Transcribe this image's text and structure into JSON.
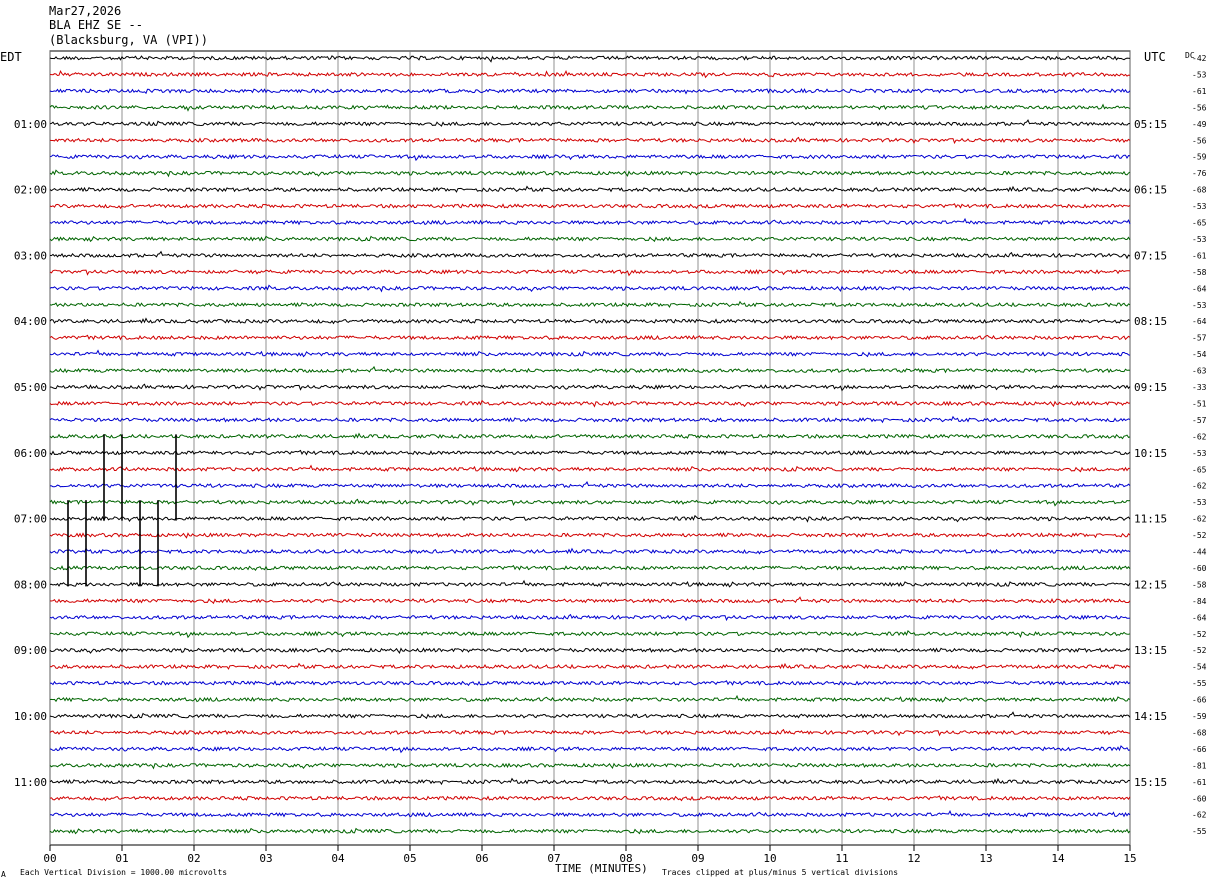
{
  "header": {
    "date": "Mar27,2026",
    "station": "BLA EHZ SE --",
    "location": "(Blacksburg, VA (VPI))"
  },
  "left_tz": "EDT",
  "right_tz": "UTC",
  "dc_label": "DC",
  "footer": {
    "scale": "Each Vertical Division = 1000.00 microvolts",
    "xlabel": "TIME (MINUTES)",
    "clip": "Traces clipped at plus/minus 5 vertical divisions",
    "corner_mark": "A"
  },
  "colors": {
    "black": "#000000",
    "red": "#d10000",
    "blue": "#0000d0",
    "green": "#006400",
    "grid": "#777777"
  },
  "chart_data": {
    "type": "line",
    "title": "BLA EHZ SE --",
    "xlabel": "TIME (MINUTES)",
    "xlim": [
      0,
      15
    ],
    "x_tick_labels": [
      "00",
      "01",
      "02",
      "03",
      "04",
      "05",
      "06",
      "07",
      "08",
      "09",
      "10",
      "11",
      "12",
      "13",
      "14",
      "15"
    ],
    "trace_colors_cycle": [
      "black",
      "red",
      "blue",
      "green"
    ],
    "left_hour_labels": [
      "01:00",
      "02:00",
      "03:00",
      "04:00",
      "05:00",
      "06:00",
      "07:00",
      "08:00",
      "09:00",
      "10:00",
      "11:00"
    ],
    "right_hour_labels": [
      "05:15",
      "06:15",
      "07:15",
      "08:15",
      "09:15",
      "10:15",
      "11:15",
      "12:15",
      "13:15",
      "14:15",
      "15:15"
    ],
    "dc_offsets": [
      -42,
      -53,
      -61,
      -56,
      -49,
      -56,
      -59,
      -76,
      -68,
      -53,
      -65,
      -53,
      -61,
      -58,
      -64,
      -53,
      -64,
      -57,
      -54,
      -63,
      -33,
      -51,
      -57,
      -62,
      -53,
      -65,
      -62,
      -53,
      -62,
      -52,
      -44,
      -60,
      -58,
      -84,
      -64,
      -52,
      -52,
      -54,
      -55,
      -66,
      -59,
      -68,
      -66,
      -81,
      -61,
      -60,
      -62,
      -55
    ],
    "spikes": [
      {
        "minute": 0.25,
        "trace_from": 27,
        "trace_to": 32
      },
      {
        "minute": 0.5,
        "trace_from": 27,
        "trace_to": 32
      },
      {
        "minute": 0.75,
        "trace_from": 23,
        "trace_to": 28
      },
      {
        "minute": 1.0,
        "trace_from": 23,
        "trace_to": 28
      },
      {
        "minute": 1.25,
        "trace_from": 27,
        "trace_to": 32
      },
      {
        "minute": 1.5,
        "trace_from": 27,
        "trace_to": 32
      },
      {
        "minute": 1.75,
        "trace_from": 23,
        "trace_to": 28
      }
    ]
  }
}
